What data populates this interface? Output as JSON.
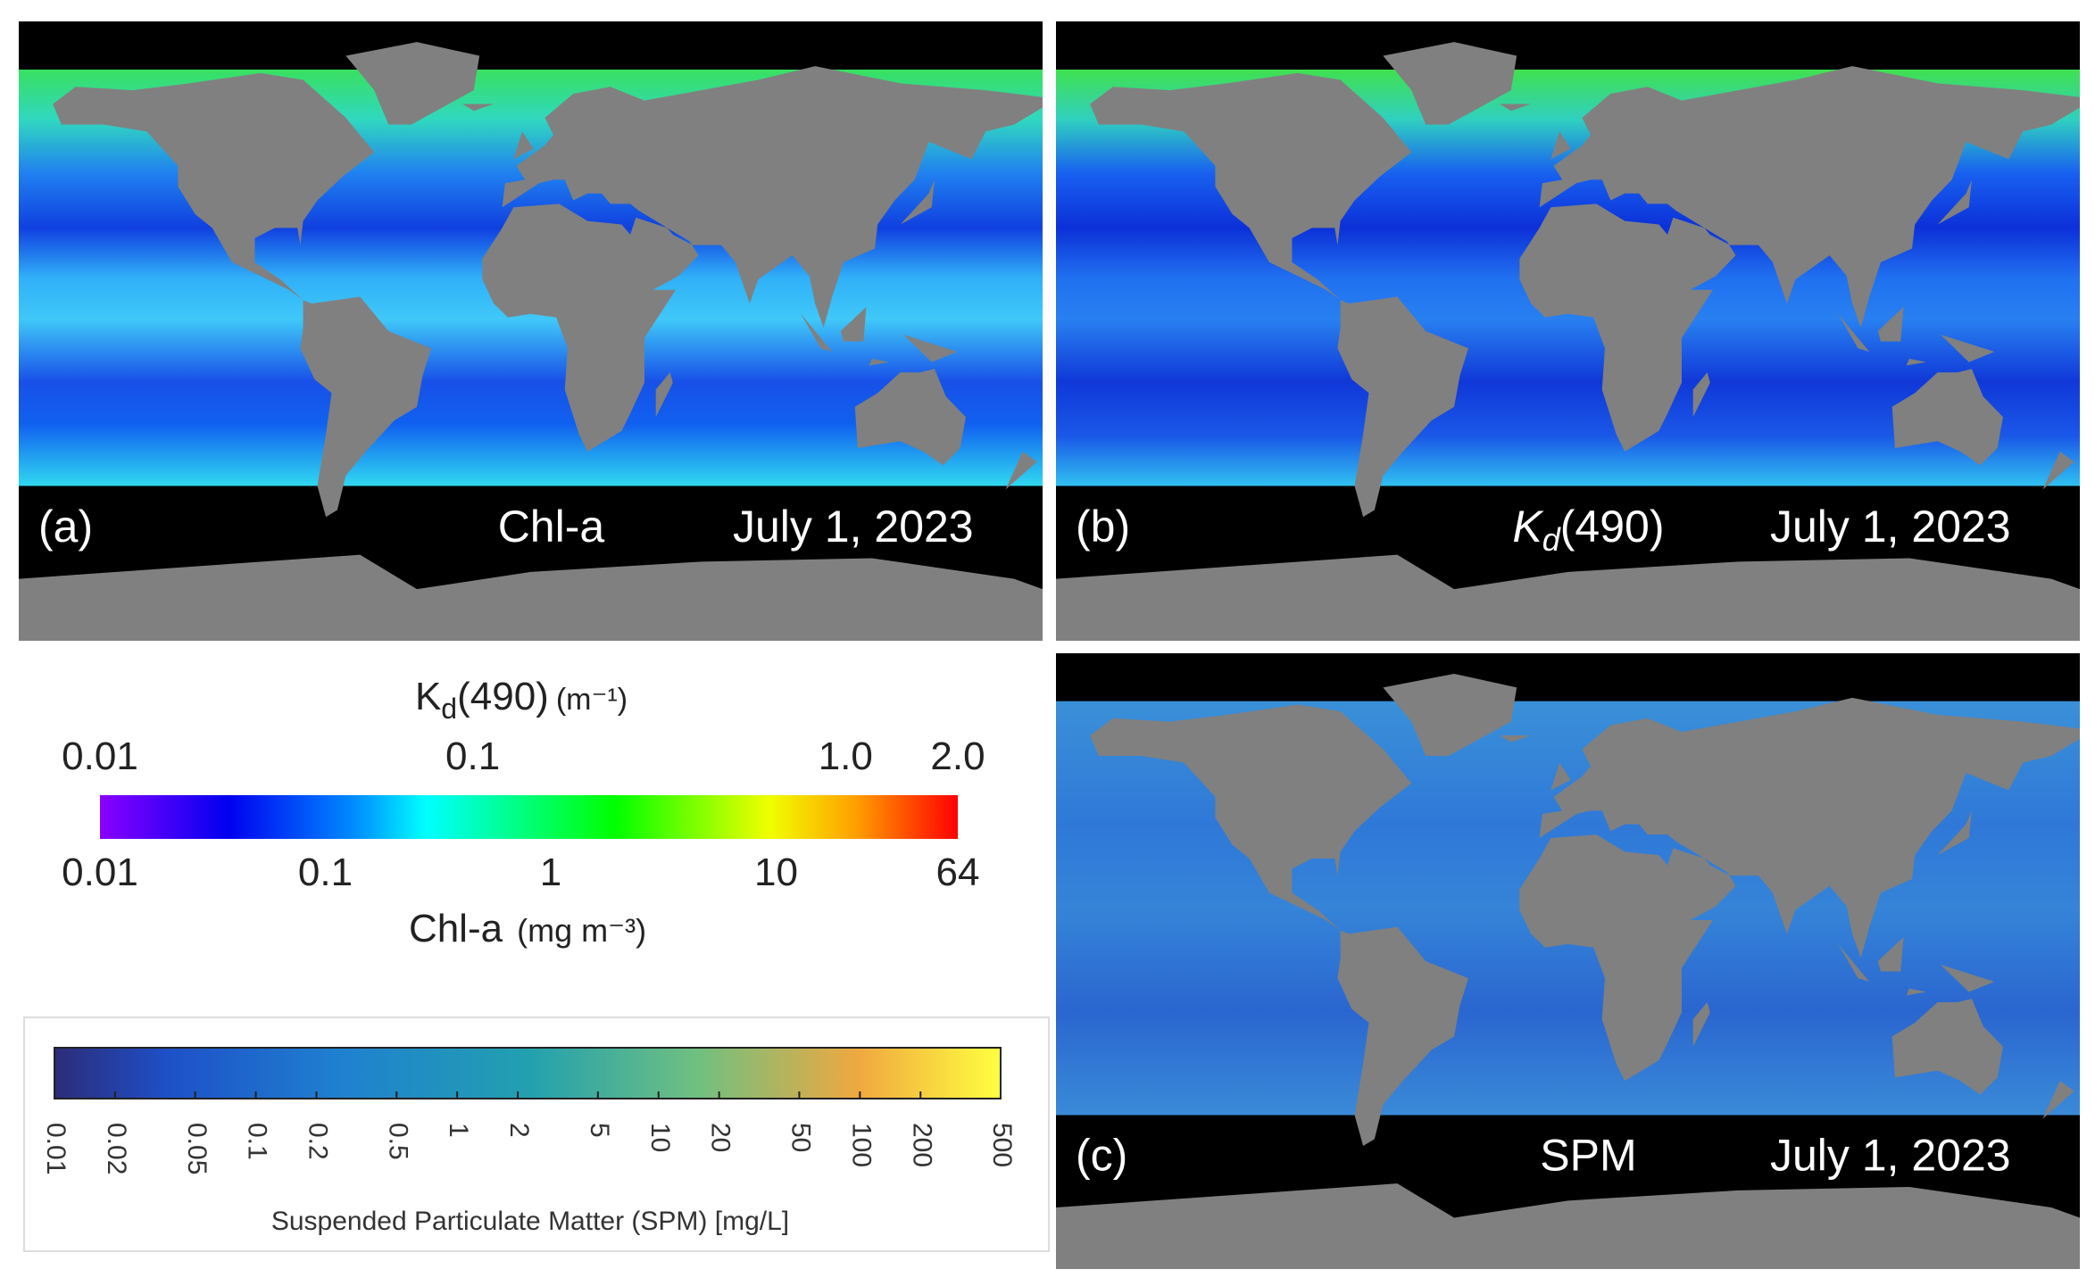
{
  "panels": [
    {
      "label": "(a)",
      "variable": "Chl-a",
      "date": "July 1, 2023"
    },
    {
      "label": "(b)",
      "variable": {
        "symbol": "K",
        "subscript": "d",
        "suffix": "(490)"
      },
      "date": "July 1, 2023"
    },
    {
      "label": "(c)",
      "variable": "SPM",
      "date": "July 1, 2023"
    }
  ],
  "kd_colorbar": {
    "title": {
      "symbol": "K",
      "subscript": "d",
      "suffix": "(490)",
      "unit": "(m⁻¹)"
    },
    "ticks": [
      "0.01",
      "0.1",
      "1.0",
      "2.0"
    ]
  },
  "chl_colorbar": {
    "title": "Chl-a",
    "unit": "(mg m⁻³)",
    "ticks": [
      "0.01",
      "0.1",
      "1",
      "10",
      "64"
    ]
  },
  "spm_colorbar": {
    "title": "Suspended Particulate Matter (SPM) [mg/L]",
    "ticks": [
      "0.01",
      "0.02",
      "0.05",
      "0.1",
      "0.2",
      "0.5",
      "1",
      "2",
      "5",
      "10",
      "20",
      "50",
      "100",
      "200",
      "500"
    ]
  }
}
